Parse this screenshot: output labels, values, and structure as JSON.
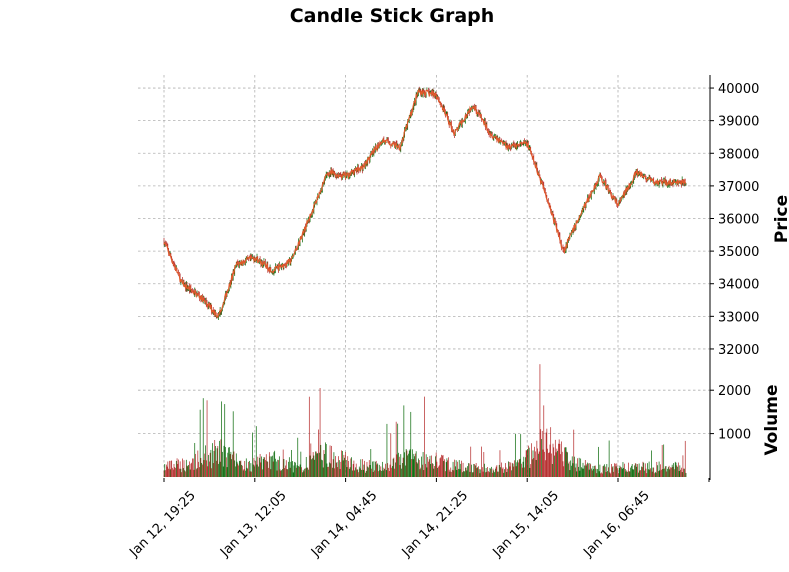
{
  "chart_data": [
    {
      "type": "candlestick",
      "title": "Candle Stick Graph",
      "ylabel": "Price",
      "ylim": [
        31600,
        40400
      ],
      "yticks": [
        32000,
        33000,
        34000,
        35000,
        36000,
        37000,
        38000,
        39000,
        40000
      ],
      "x_tick_labels": [
        "Jan 12, 19:25",
        "Jan 13, 12:05",
        "Jan 14, 04:45",
        "Jan 14, 21:25",
        "Jan 15, 14:05",
        "Jan 16, 06:45"
      ],
      "close_path": {
        "x": [
          "Jan 12, 19:25",
          "Jan 12, 22:45",
          "Jan 13, 02:05",
          "Jan 13, 05:25",
          "Jan 13, 08:45",
          "Jan 13, 12:05",
          "Jan 13, 15:25",
          "Jan 13, 18:45",
          "Jan 13, 22:05",
          "Jan 14, 01:25",
          "Jan 14, 04:45",
          "Jan 14, 08:05",
          "Jan 14, 11:25",
          "Jan 14, 14:45",
          "Jan 14, 18:05",
          "Jan 14, 21:25",
          "Jan 15, 00:45",
          "Jan 15, 04:05",
          "Jan 15, 07:25",
          "Jan 15, 10:45",
          "Jan 15, 14:05",
          "Jan 15, 17:25",
          "Jan 15, 20:45",
          "Jan 16, 00:05",
          "Jan 16, 03:25",
          "Jan 16, 06:45",
          "Jan 16, 10:05",
          "Jan 16, 13:25"
        ],
        "close": [
          35300,
          34000,
          33600,
          33000,
          34600,
          34800,
          34400,
          34700,
          36000,
          37400,
          37300,
          37600,
          38400,
          38200,
          39900,
          39800,
          38600,
          39500,
          38600,
          38200,
          38300,
          36800,
          35000,
          36200,
          37300,
          36400,
          37400,
          37100
        ]
      },
      "ohlc_color_up": "#006400",
      "ohlc_color_down": "#b22222",
      "line_color": "#e05a2b"
    },
    {
      "type": "bar",
      "ylabel": "Volume",
      "ylim": [
        0,
        2650
      ],
      "yticks": [
        1000,
        2000
      ],
      "volume_profile": {
        "x": [
          "Jan 12, 19:25",
          "Jan 13, 00:25",
          "Jan 13, 05:25",
          "Jan 13, 10:25",
          "Jan 13, 15:25",
          "Jan 13, 20:25",
          "Jan 14, 01:25",
          "Jan 14, 06:25",
          "Jan 14, 11:25",
          "Jan 14, 16:25",
          "Jan 14, 21:25",
          "Jan 15, 02:25",
          "Jan 15, 07:25",
          "Jan 15, 12:25",
          "Jan 15, 17:25",
          "Jan 15, 22:25",
          "Jan 16, 03:25",
          "Jan 16, 08:25",
          "Jan 16, 13:25"
        ],
        "typical": [
          250,
          350,
          650,
          300,
          450,
          250,
          600,
          300,
          250,
          500,
          400,
          250,
          200,
          280,
          900,
          350,
          200,
          250,
          250
        ]
      },
      "peaks": [
        {
          "x": "Jan 13, 02:05",
          "value": 1550
        },
        {
          "x": "Jan 14, 00:05",
          "value": 2050
        },
        {
          "x": "Jan 13, 22:05",
          "value": 1850
        },
        {
          "x": "Jan 14, 15:25",
          "value": 1650
        },
        {
          "x": "Jan 15, 16:25",
          "value": 2600
        },
        {
          "x": "Jan 15, 17:05",
          "value": 1650
        }
      ]
    }
  ]
}
